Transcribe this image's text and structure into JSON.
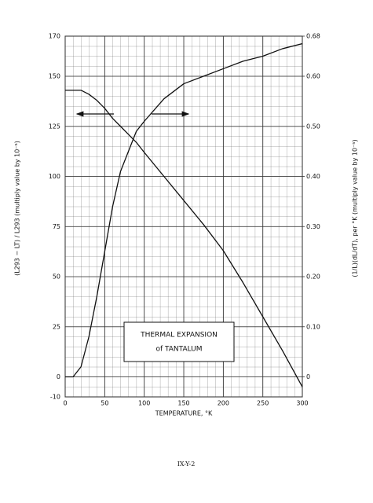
{
  "chart_data": {
    "type": "line",
    "title_lines": [
      "THERMAL EXPANSION",
      "of TANTALUM"
    ],
    "xlabel": "TEMPERATURE, °K",
    "ylabel": "(L293 − LT) / L293   (multiply value by 10⁻⁵)",
    "y2label": "(1/L)(dL/dT), per °K   (multiply value by 10⁻⁵)",
    "page_label": "IX-Y-2",
    "x": [
      0,
      10,
      20,
      30,
      40,
      50,
      60,
      70,
      80,
      90,
      100,
      125,
      150,
      175,
      200,
      225,
      250,
      275,
      300
    ],
    "series": [
      {
        "color": "#111111",
        "axis": "y",
        "values": [
          143,
          143,
          143,
          141,
          138,
          134,
          129,
          125,
          121,
          117,
          112,
          100,
          88,
          76,
          63,
          47,
          30,
          13,
          -5
        ]
      },
      {
        "color": "#111111",
        "axis": "y2",
        "values": [
          0,
          0,
          0.02,
          0.08,
          0.16,
          0.25,
          0.34,
          0.41,
          0.45,
          0.49,
          0.51,
          0.555,
          0.585,
          0.6,
          0.615,
          0.63,
          0.64,
          0.655,
          0.665
        ]
      }
    ],
    "xlim": [
      0,
      300
    ],
    "xticks": [
      0,
      50,
      100,
      150,
      200,
      250,
      300
    ],
    "ylim": [
      -10,
      170
    ],
    "yticks": [
      -10,
      0,
      25,
      50,
      75,
      100,
      125,
      150,
      170
    ],
    "y2lim": [
      -0.04,
      0.68
    ],
    "y2ticks": [
      0,
      {
        "value": 0.1,
        "label": "0.10"
      },
      {
        "value": 0.2,
        "label": "0.20"
      },
      {
        "value": 0.3,
        "label": "0.30"
      },
      {
        "value": 0.4,
        "label": "0.40"
      },
      {
        "value": 0.5,
        "label": "0.50"
      },
      {
        "value": 0.6,
        "label": "0.60"
      },
      0.68
    ],
    "grid": true
  }
}
